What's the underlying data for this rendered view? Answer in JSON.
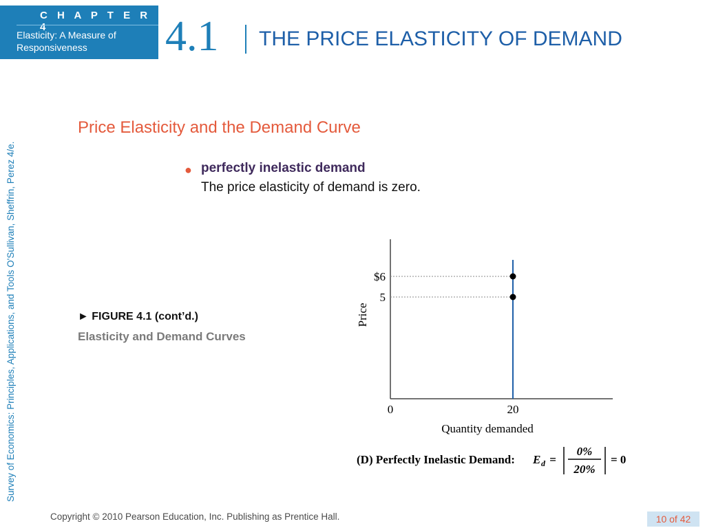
{
  "header": {
    "chapter_label": "C H A P T E R  4",
    "chapter_subtitle": "Elasticity: A Measure of Responsiveness",
    "section_number": "4.1",
    "slide_title": "THE PRICE ELASTICITY OF DEMAND"
  },
  "side_text": "Survey of Economics: Principles, Applications, and Tools    O'Sullivan, Sheffrin, Perez    4/e.",
  "main": {
    "subtitle": "Price Elasticity and the Demand Curve",
    "bullet": {
      "term": "perfectly inelastic demand",
      "description": "The price elasticity of demand is zero."
    },
    "figure_label": "► FIGURE 4.1 (cont’d.)",
    "figure_caption": "Elasticity and Demand Curves"
  },
  "chart_data": {
    "type": "line",
    "xlabel": "Quantity demanded",
    "ylabel": "Price",
    "x_ticks": [
      "0",
      "20"
    ],
    "y_ticks": [
      "$6",
      "5"
    ],
    "series": [
      {
        "x": [
          20,
          20
        ],
        "y": [
          6,
          5
        ]
      }
    ],
    "demand_line_x": 20,
    "caption_prefix": "(D) Perfectly Inelastic Demand: ",
    "formula": {
      "symbol": "E",
      "subscript": "d",
      "equals": " =",
      "numerator": "0%",
      "denominator": "20%",
      "result": "= 0"
    },
    "colors": {
      "demand_line": "#1e5fa8",
      "axis": "#444444"
    }
  },
  "footer": {
    "copyright": "Copyright © 2010  Pearson Education, Inc. Publishing as Prentice Hall.",
    "page": "10 of 42"
  }
}
